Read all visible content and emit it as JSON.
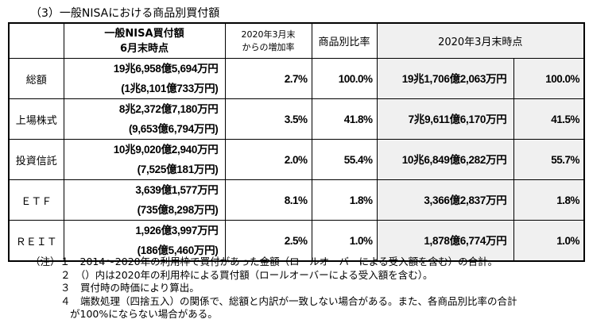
{
  "title": "（3）一般NISAにおける商品別買付額",
  "headers": {
    "amount": "一般NISA買付額",
    "amount_sub": "6月末時点",
    "growth": "2020年3月末",
    "growth_sub": "からの増加率",
    "ratio": "商品別比率",
    "march": "2020年3月末時点"
  },
  "rows": [
    {
      "label": "総額",
      "amount": "19兆6,958億5,694万円",
      "amount_2020": "(1兆8,101億733万円)",
      "growth": "2.7%",
      "ratio": "100.0%",
      "march_amount": "19兆1,706億2,063万円",
      "march_ratio": "100.0%"
    },
    {
      "label": "上場株式",
      "amount": "8兆2,372億7,180万円",
      "amount_2020": "(9,653億6,794万円)",
      "growth": "3.5%",
      "ratio": "41.8%",
      "march_amount": "7兆9,611億6,170万円",
      "march_ratio": "41.5%"
    },
    {
      "label": "投資信託",
      "amount": "10兆9,020億2,940万円",
      "amount_2020": "(7,525億181万円)",
      "growth": "2.0%",
      "ratio": "55.4%",
      "march_amount": "10兆6,849億6,282万円",
      "march_ratio": "55.7%"
    },
    {
      "label": "ＥＴＦ",
      "amount": "3,639億1,577万円",
      "amount_2020": "(735億8,298万円)",
      "growth": "8.1%",
      "ratio": "1.8%",
      "march_amount": "3,366億2,837万円",
      "march_ratio": "1.8%"
    },
    {
      "label": "ＲＥＩＴ",
      "amount": "1,926億3,997万円",
      "amount_2020": "(186億5,460万円)",
      "growth": "2.5%",
      "ratio": "1.0%",
      "march_amount": "1,878億6,774万円",
      "march_ratio": "1.0%"
    }
  ],
  "notes": [
    "（注）１　2014～2020年の利用枠で買付があった金額（ロールオーバーによる受入額を含む）の合計。",
    "２　（）内は2020年の利用枠による買付額（ロールオーバーによる受入額を含む）。",
    "３　買付時の時価により算出。",
    "４　端数処理（四捨五入）の関係で、総額と内訳が一致しない場合がある。また、各商品別比率の合計",
    "が100%にならない場合がある。"
  ]
}
